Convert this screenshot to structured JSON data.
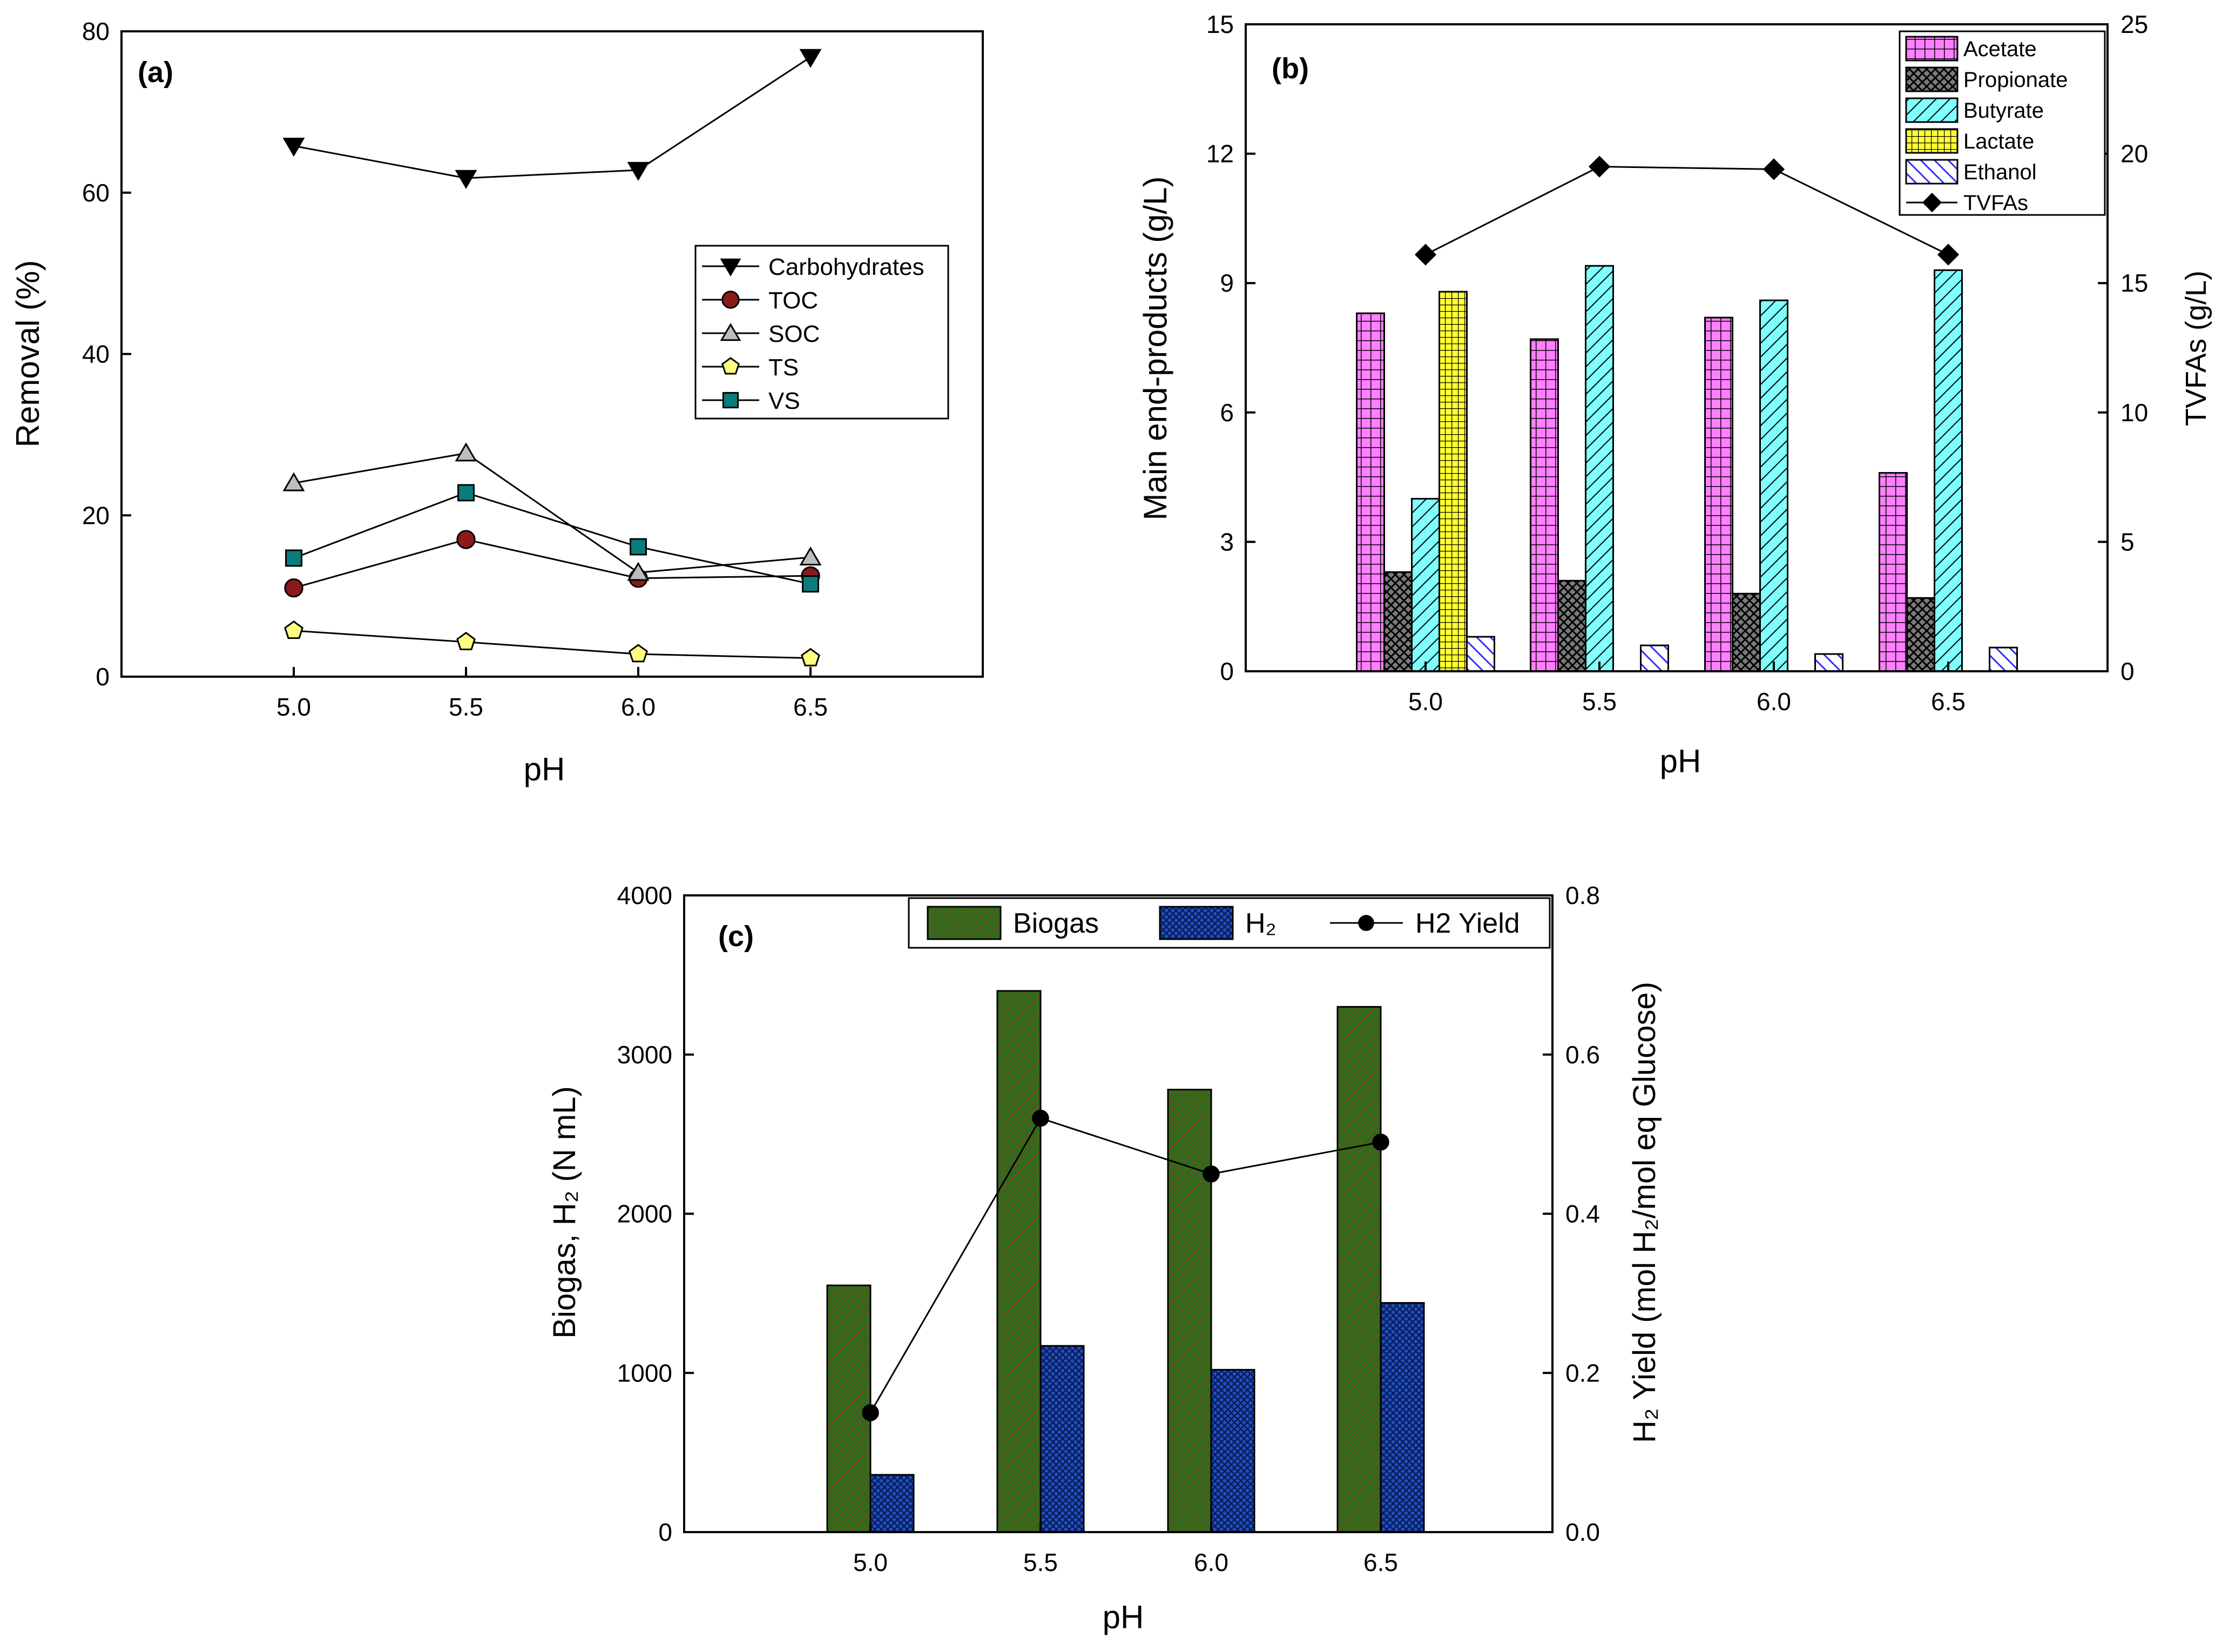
{
  "chart_data": [
    {
      "panel": "(a)",
      "type": "line",
      "xlabel": "pH",
      "ylabel": "Removal (%)",
      "x": [
        5.0,
        5.5,
        6.0,
        6.5
      ],
      "xticks": [
        "5.0",
        "5.5",
        "6.0",
        "6.5"
      ],
      "xlim": [
        4.5,
        7.0
      ],
      "ylim": [
        0,
        80
      ],
      "yticks": [
        0,
        20,
        40,
        60,
        80
      ],
      "legend_position": "middle-right",
      "series": [
        {
          "name": "Carbohydrates",
          "marker": "triangle-down",
          "color": "#000000",
          "values": [
            65.8,
            61.8,
            62.8,
            76.8
          ]
        },
        {
          "name": "TOC",
          "marker": "circle",
          "color": "#8b1a1a",
          "values": [
            11.0,
            17.0,
            12.2,
            12.5
          ]
        },
        {
          "name": "SOC",
          "marker": "triangle-up",
          "color": "#bdbdbd",
          "values": [
            24.0,
            27.7,
            12.9,
            14.8
          ]
        },
        {
          "name": "TS",
          "marker": "pentagon",
          "color": "#ffff80",
          "values": [
            5.7,
            4.3,
            2.8,
            2.3
          ]
        },
        {
          "name": "VS",
          "marker": "square",
          "color": "#0b7c7c",
          "values": [
            14.7,
            22.8,
            16.1,
            11.5
          ]
        }
      ]
    },
    {
      "panel": "(b)",
      "type": "bar",
      "xlabel": "pH",
      "ylabel": "Main end-products (g/L)",
      "y2label": "TVFAs (g/L)",
      "categories": [
        "5.0",
        "5.5",
        "6.0",
        "6.5"
      ],
      "ylim": [
        0,
        15
      ],
      "yticks": [
        0,
        3,
        6,
        9,
        12,
        15
      ],
      "y2lim": [
        0,
        25
      ],
      "y2ticks": [
        0,
        5,
        10,
        15,
        20,
        25
      ],
      "legend_position": "top-right",
      "series": [
        {
          "name": "Acetate",
          "color": "#ff80ff",
          "pattern": "grid",
          "values": [
            8.3,
            7.7,
            8.2,
            4.6
          ]
        },
        {
          "name": "Propionate",
          "color": "#808080",
          "pattern": "crosshatch",
          "values": [
            2.3,
            2.1,
            1.8,
            1.7
          ]
        },
        {
          "name": "Butyrate",
          "color": "#80ffff",
          "pattern": "hatch",
          "values": [
            4.0,
            9.4,
            8.6,
            9.3
          ]
        },
        {
          "name": "Lactate",
          "color": "#ffff33",
          "pattern": "grid",
          "values": [
            8.8,
            0,
            0,
            0
          ]
        },
        {
          "name": "Ethanol",
          "color": "#4040ff",
          "pattern": "hatch-rev",
          "values": [
            0.8,
            0.6,
            0.4,
            0.55
          ]
        }
      ],
      "line_series": [
        {
          "name": "TVFAs",
          "marker": "diamond",
          "axis": "right",
          "values": [
            16.1,
            19.5,
            19.4,
            16.1
          ]
        }
      ]
    },
    {
      "panel": "(c)",
      "type": "bar",
      "xlabel": "pH",
      "ylabel": "Biogas, H₂ (N mL)",
      "y2label": "H₂ Yield (mol H₂/mol eq Glucose)",
      "categories": [
        "5.0",
        "5.5",
        "6.0",
        "6.5"
      ],
      "ylim": [
        0,
        4000
      ],
      "yticks": [
        0,
        1000,
        2000,
        3000,
        4000
      ],
      "y2lim": [
        0.0,
        0.8
      ],
      "y2ticks": [
        "0.0",
        "0.2",
        "0.4",
        "0.6",
        "0.8"
      ],
      "legend_position": "top",
      "series": [
        {
          "name": "Biogas",
          "color": "#2f6b1f",
          "pattern": "hatch",
          "values": [
            1550,
            3400,
            2780,
            3300
          ]
        },
        {
          "name": "H₂",
          "color": "#1f4fbf",
          "pattern": "crosshatch",
          "values": [
            360,
            1170,
            1020,
            1440
          ]
        }
      ],
      "line_series": [
        {
          "name": "H2 Yield",
          "marker": "circle",
          "axis": "right",
          "values": [
            0.15,
            0.52,
            0.45,
            0.49
          ]
        }
      ]
    }
  ]
}
